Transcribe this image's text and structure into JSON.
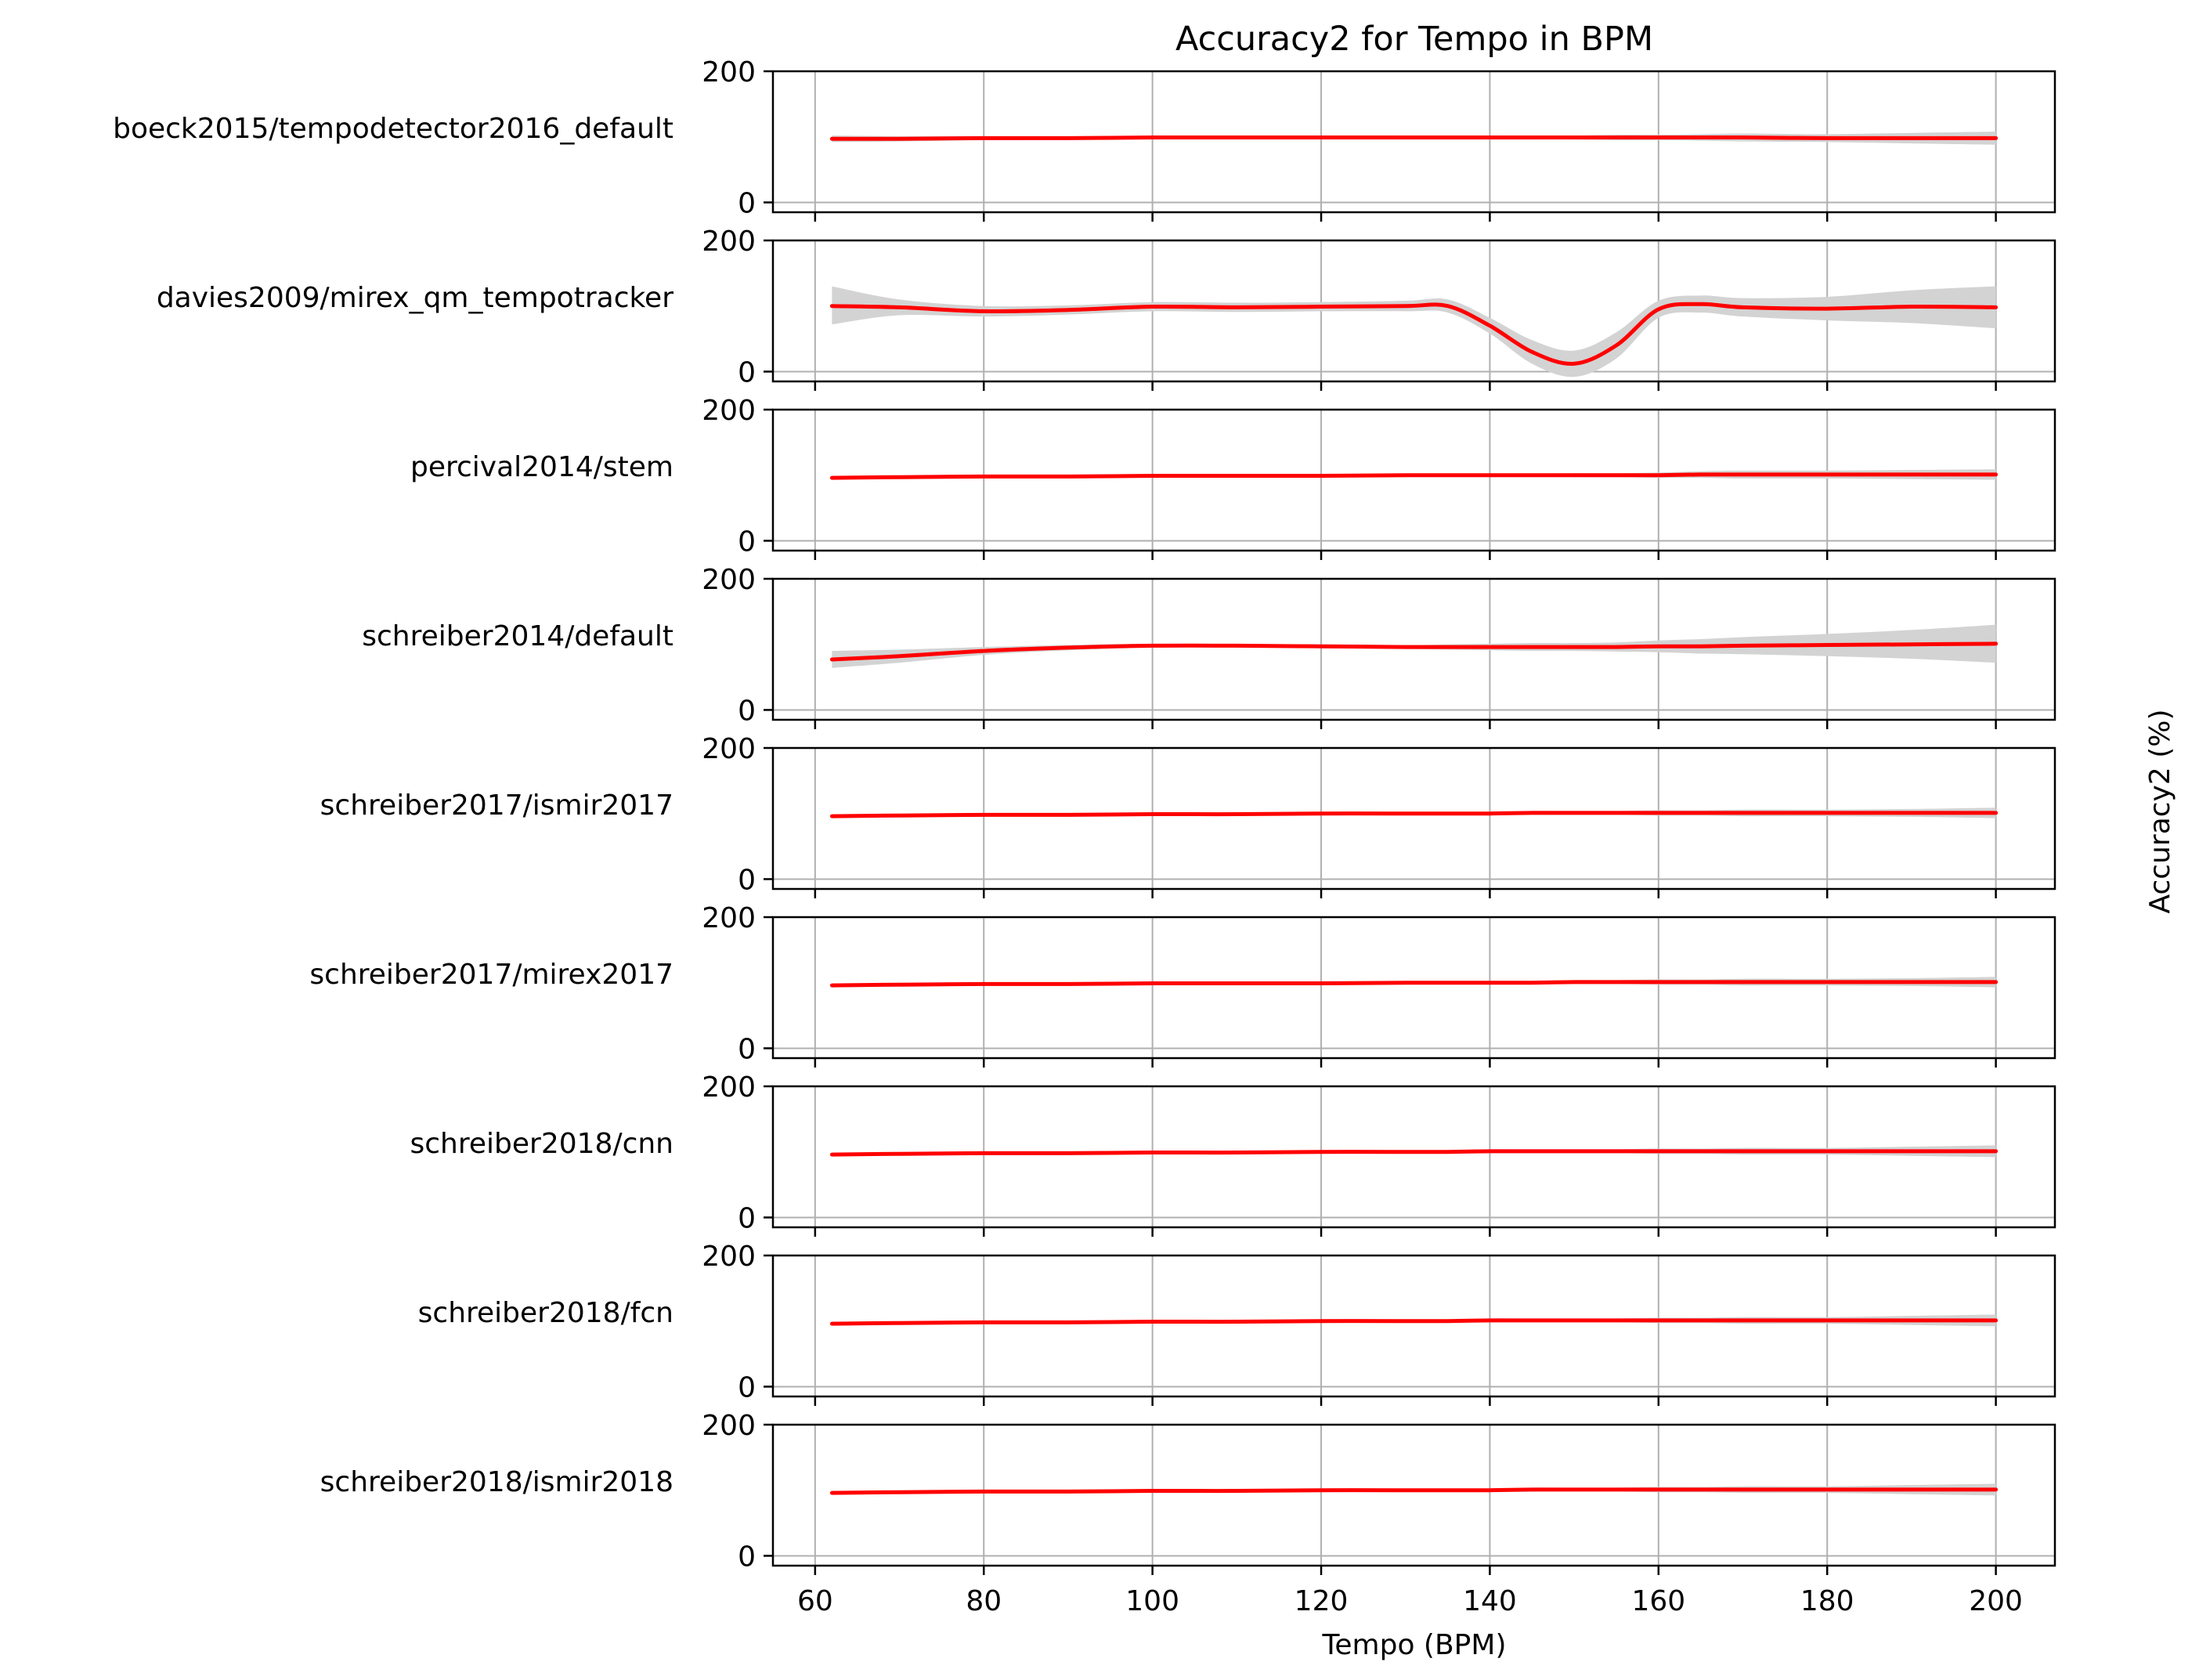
{
  "chart_data": {
    "type": "line",
    "title": "Accuracy2 for Tempo in BPM",
    "xlabel": "Tempo (BPM)",
    "ylabel": "Accuracy2 (%)",
    "xlim": [
      55,
      207
    ],
    "ylim": [
      -15,
      200
    ],
    "x_ticks": [
      60,
      80,
      100,
      120,
      140,
      160,
      180,
      200
    ],
    "y_ticks": [
      0,
      200
    ],
    "grid": true,
    "line_color": "#ff0000",
    "band_color": "#d3d3d3",
    "x": [
      62,
      70,
      80,
      90,
      100,
      110,
      120,
      130,
      135,
      140,
      145,
      150,
      155,
      160,
      165,
      170,
      180,
      190,
      200
    ],
    "series": [
      {
        "name": "boeck2015/tempodetector2016_default",
        "values": [
          97,
          97,
          98,
          98,
          99,
          99,
          99,
          99,
          99,
          99,
          99,
          99,
          99,
          99,
          99,
          99,
          98,
          98,
          98
        ],
        "lower": [
          92,
          93,
          95,
          96,
          97,
          97,
          97,
          96,
          96,
          96,
          96,
          96,
          95,
          95,
          94,
          93,
          92,
          90,
          88
        ],
        "upper": [
          102,
          101,
          101,
          100,
          101,
          101,
          101,
          102,
          102,
          102,
          102,
          102,
          103,
          103,
          104,
          105,
          104,
          106,
          108
        ]
      },
      {
        "name": "davies2009/mirex_qm_tempotracker",
        "values": [
          100,
          98,
          92,
          94,
          99,
          98,
          99,
          100,
          100,
          70,
          30,
          12,
          40,
          95,
          103,
          98,
          96,
          99,
          98
        ],
        "lower": [
          72,
          86,
          84,
          87,
          92,
          91,
          92,
          92,
          90,
          58,
          12,
          -8,
          20,
          82,
          90,
          84,
          78,
          74,
          66
        ],
        "upper": [
          130,
          110,
          100,
          101,
          106,
          105,
          106,
          108,
          110,
          82,
          48,
          32,
          60,
          108,
          116,
          112,
          114,
          124,
          130
        ]
      },
      {
        "name": "percival2014/stem",
        "values": [
          96,
          97,
          98,
          98,
          99,
          99,
          99,
          100,
          100,
          100,
          100,
          100,
          100,
          100,
          101,
          101,
          101,
          101,
          101
        ],
        "lower": [
          93,
          95,
          96,
          97,
          98,
          98,
          98,
          98,
          98,
          98,
          98,
          97,
          97,
          96,
          96,
          95,
          95,
          94,
          93
        ],
        "upper": [
          99,
          99,
          100,
          99,
          100,
          100,
          100,
          102,
          102,
          102,
          102,
          103,
          103,
          104,
          106,
          107,
          107,
          108,
          109
        ]
      },
      {
        "name": "schreiber2014/default",
        "values": [
          77,
          82,
          90,
          95,
          98,
          98,
          97,
          96,
          96,
          96,
          96,
          96,
          96,
          97,
          97,
          98,
          99,
          100,
          101
        ],
        "lower": [
          64,
          72,
          84,
          91,
          95,
          96,
          94,
          93,
          92,
          91,
          90,
          90,
          89,
          88,
          86,
          85,
          82,
          78,
          72
        ],
        "upper": [
          90,
          92,
          96,
          99,
          101,
          100,
          100,
          99,
          100,
          101,
          102,
          102,
          103,
          106,
          108,
          111,
          116,
          122,
          130
        ]
      },
      {
        "name": "schreiber2017/ismir2017",
        "values": [
          96,
          97,
          98,
          98,
          99,
          99,
          100,
          100,
          100,
          100,
          101,
          101,
          101,
          101,
          101,
          101,
          101,
          101,
          101
        ],
        "lower": [
          93,
          95,
          96,
          97,
          98,
          98,
          98,
          98,
          98,
          98,
          98,
          98,
          98,
          97,
          97,
          96,
          96,
          95,
          93
        ],
        "upper": [
          99,
          99,
          100,
          99,
          100,
          100,
          102,
          102,
          102,
          102,
          104,
          104,
          104,
          105,
          105,
          106,
          106,
          107,
          109
        ]
      },
      {
        "name": "schreiber2017/mirex2017",
        "values": [
          96,
          97,
          98,
          98,
          99,
          99,
          99,
          100,
          100,
          100,
          100,
          101,
          101,
          101,
          101,
          101,
          101,
          101,
          101
        ],
        "lower": [
          93,
          95,
          96,
          97,
          98,
          98,
          98,
          98,
          98,
          98,
          98,
          98,
          98,
          97,
          97,
          96,
          96,
          95,
          93
        ],
        "upper": [
          99,
          99,
          100,
          99,
          100,
          100,
          100,
          102,
          102,
          102,
          102,
          104,
          104,
          105,
          105,
          106,
          106,
          107,
          109
        ]
      },
      {
        "name": "schreiber2018/cnn",
        "values": [
          96,
          97,
          98,
          98,
          99,
          99,
          100,
          100,
          100,
          101,
          101,
          101,
          101,
          101,
          101,
          101,
          101,
          101,
          101
        ],
        "lower": [
          93,
          95,
          96,
          97,
          98,
          98,
          98,
          98,
          98,
          98,
          98,
          98,
          98,
          97,
          97,
          96,
          96,
          94,
          92
        ],
        "upper": [
          99,
          99,
          100,
          99,
          100,
          100,
          102,
          102,
          102,
          104,
          104,
          104,
          104,
          105,
          105,
          106,
          106,
          108,
          110
        ]
      },
      {
        "name": "schreiber2018/fcn",
        "values": [
          96,
          97,
          98,
          98,
          99,
          99,
          100,
          100,
          100,
          101,
          101,
          101,
          101,
          101,
          101,
          101,
          101,
          101,
          101
        ],
        "lower": [
          93,
          95,
          96,
          97,
          98,
          98,
          98,
          98,
          98,
          98,
          98,
          98,
          98,
          97,
          97,
          96,
          96,
          94,
          92
        ],
        "upper": [
          99,
          99,
          100,
          99,
          100,
          100,
          102,
          102,
          102,
          104,
          104,
          104,
          104,
          105,
          105,
          106,
          106,
          108,
          110
        ]
      },
      {
        "name": "schreiber2018/ismir2018",
        "values": [
          96,
          97,
          98,
          98,
          99,
          99,
          100,
          100,
          100,
          100,
          101,
          101,
          101,
          101,
          101,
          101,
          101,
          101,
          101
        ],
        "lower": [
          93,
          95,
          96,
          97,
          98,
          98,
          98,
          98,
          98,
          98,
          98,
          98,
          98,
          97,
          97,
          96,
          96,
          94,
          92
        ],
        "upper": [
          99,
          99,
          100,
          99,
          100,
          100,
          102,
          102,
          102,
          102,
          104,
          104,
          104,
          105,
          105,
          106,
          106,
          108,
          110
        ]
      }
    ]
  }
}
